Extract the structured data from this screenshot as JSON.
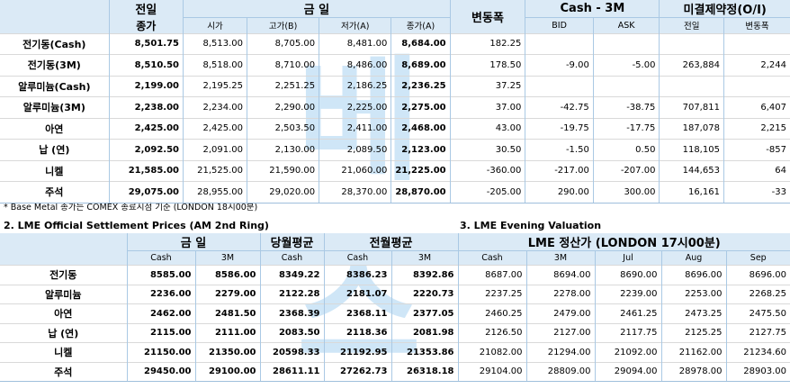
{
  "table1": {
    "headers": {
      "prev_top": "전일",
      "prev_bottom": "종가",
      "today": "금    일",
      "today_subs": [
        "시가",
        "고가(B)",
        "저가(A)",
        "종가(A)"
      ],
      "change": "변동폭",
      "cash3m": "Cash - 3M",
      "cash3m_subs": [
        "BID",
        "ASK"
      ],
      "oi": "미결제약정(O/I)",
      "oi_subs": [
        "전일",
        "변동폭"
      ]
    },
    "rows": [
      {
        "label": "전기동(Cash)",
        "vals": [
          "8,501.75",
          "8,513.00",
          "8,705.00",
          "8,481.00",
          "8,684.00",
          "182.25",
          "",
          "",
          "",
          ""
        ]
      },
      {
        "label": "전기동(3M)",
        "vals": [
          "8,510.50",
          "8,518.00",
          "8,710.00",
          "8,486.00",
          "8,689.00",
          "178.50",
          "-9.00",
          "-5.00",
          "263,884",
          "2,244"
        ]
      },
      {
        "label": "알루미늄(Cash)",
        "vals": [
          "2,199.00",
          "2,195.25",
          "2,251.25",
          "2,186.25",
          "2,236.25",
          "37.25",
          "",
          "",
          "",
          ""
        ]
      },
      {
        "label": "알루미늄(3M)",
        "vals": [
          "2,238.00",
          "2,234.00",
          "2,290.00",
          "2,225.00",
          "2,275.00",
          "37.00",
          "-42.75",
          "-38.75",
          "707,811",
          "6,407"
        ]
      },
      {
        "label": "아연",
        "vals": [
          "2,425.00",
          "2,425.00",
          "2,503.50",
          "2,411.00",
          "2,468.00",
          "43.00",
          "-19.75",
          "-17.75",
          "187,078",
          "2,215"
        ]
      },
      {
        "label": "납 (연)",
        "vals": [
          "2,092.50",
          "2,091.00",
          "2,130.00",
          "2,089.50",
          "2,123.00",
          "30.50",
          "-1.50",
          "0.50",
          "118,105",
          "-857"
        ]
      },
      {
        "label": "니켈",
        "vals": [
          "21,585.00",
          "21,525.00",
          "21,590.00",
          "21,060.00",
          "21,225.00",
          "-360.00",
          "-217.00",
          "-207.00",
          "144,653",
          "64"
        ]
      },
      {
        "label": "주석",
        "vals": [
          "29,075.00",
          "28,955.00",
          "29,020.00",
          "28,370.00",
          "28,870.00",
          "-205.00",
          "290.00",
          "300.00",
          "16,161",
          "-33"
        ]
      }
    ]
  },
  "note": "* Base Metal 종가는 COMEX 종료시점 기준 (LONDON 18시00분)",
  "section2_title": "2. LME Official Settlement Prices (AM 2nd Ring)",
  "section3_title": "3. LME Evening Valuation",
  "table2": {
    "headers": {
      "today": "금    일",
      "monthly": "당월평균",
      "prev_month": "전월평균",
      "valuation": "LME 정산가 (LONDON 17시00분)",
      "subs": [
        "Cash",
        "3M",
        "Cash",
        "Cash",
        "3M",
        "Cash",
        "3M",
        "Jul",
        "Aug",
        "Sep"
      ]
    },
    "rows": [
      {
        "label": "전기동",
        "vals": [
          "8585.00",
          "8586.00",
          "8349.22",
          "8386.23",
          "8392.86",
          "8687.00",
          "8694.00",
          "8690.00",
          "8696.00",
          "8696.00"
        ]
      },
      {
        "label": "알루미늄",
        "vals": [
          "2236.00",
          "2279.00",
          "2122.28",
          "2181.07",
          "2220.73",
          "2237.25",
          "2278.00",
          "2239.00",
          "2253.00",
          "2268.25"
        ]
      },
      {
        "label": "아연",
        "vals": [
          "2462.00",
          "2481.50",
          "2368.39",
          "2368.11",
          "2377.05",
          "2460.25",
          "2479.00",
          "2461.25",
          "2473.25",
          "2475.50"
        ]
      },
      {
        "label": "납 (연)",
        "vals": [
          "2115.00",
          "2111.00",
          "2083.50",
          "2118.36",
          "2081.98",
          "2126.50",
          "2127.00",
          "2117.75",
          "2125.25",
          "2127.75"
        ]
      },
      {
        "label": "니켈",
        "vals": [
          "21150.00",
          "21350.00",
          "20598.33",
          "21192.95",
          "21353.86",
          "21082.00",
          "21294.00",
          "21092.00",
          "21162.00",
          "21234.60"
        ]
      },
      {
        "label": "주석",
        "vals": [
          "29450.00",
          "29100.00",
          "28611.11",
          "27262.73",
          "26318.18",
          "29104.00",
          "28809.00",
          "29094.00",
          "28978.00",
          "28903.00"
        ]
      }
    ]
  },
  "watermark": {
    "top": "베",
    "bottom": "스"
  }
}
